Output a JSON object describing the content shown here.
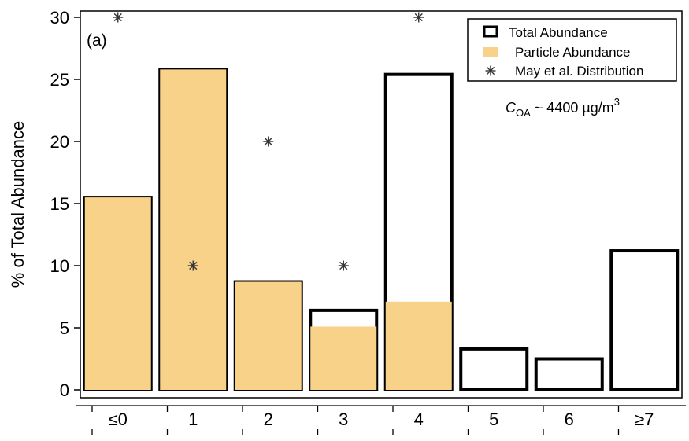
{
  "chart_data": {
    "type": "bar",
    "panel_label": "(a)",
    "ylabel": "% of Total Abundance",
    "ylim": [
      0,
      30
    ],
    "yticks": [
      0,
      5,
      10,
      15,
      20,
      25,
      30
    ],
    "categories": [
      "≤0",
      "1",
      "2",
      "3",
      "4",
      "5",
      "6",
      "≥7"
    ],
    "series": [
      {
        "name": "Total Abundance",
        "values": [
          15.5,
          25.8,
          8.7,
          6.4,
          25.4,
          3.3,
          2.5,
          11.2
        ]
      },
      {
        "name": "Particle Abundance",
        "values": [
          15.5,
          25.8,
          8.7,
          5.1,
          7.1,
          0,
          0,
          0
        ]
      },
      {
        "name": "May et al. Distribution",
        "values": [
          30,
          10,
          20,
          10,
          30,
          null,
          null,
          null
        ]
      }
    ],
    "colors": {
      "particle": "#f9d28a",
      "total_edge": "#000000",
      "marker": "#333333"
    },
    "legend": {
      "position": "top-right",
      "items": [
        {
          "label": "Total Abundance",
          "kind": "open-box"
        },
        {
          "label": "Particle Abundance",
          "kind": "filled-box"
        },
        {
          "label": "May et al. Distribution",
          "kind": "asterisk"
        }
      ]
    },
    "annotation": {
      "text_main": "C",
      "text_sub": "OA",
      "text_rest": " ~ 4400 µg/m",
      "text_sup": "3"
    }
  }
}
